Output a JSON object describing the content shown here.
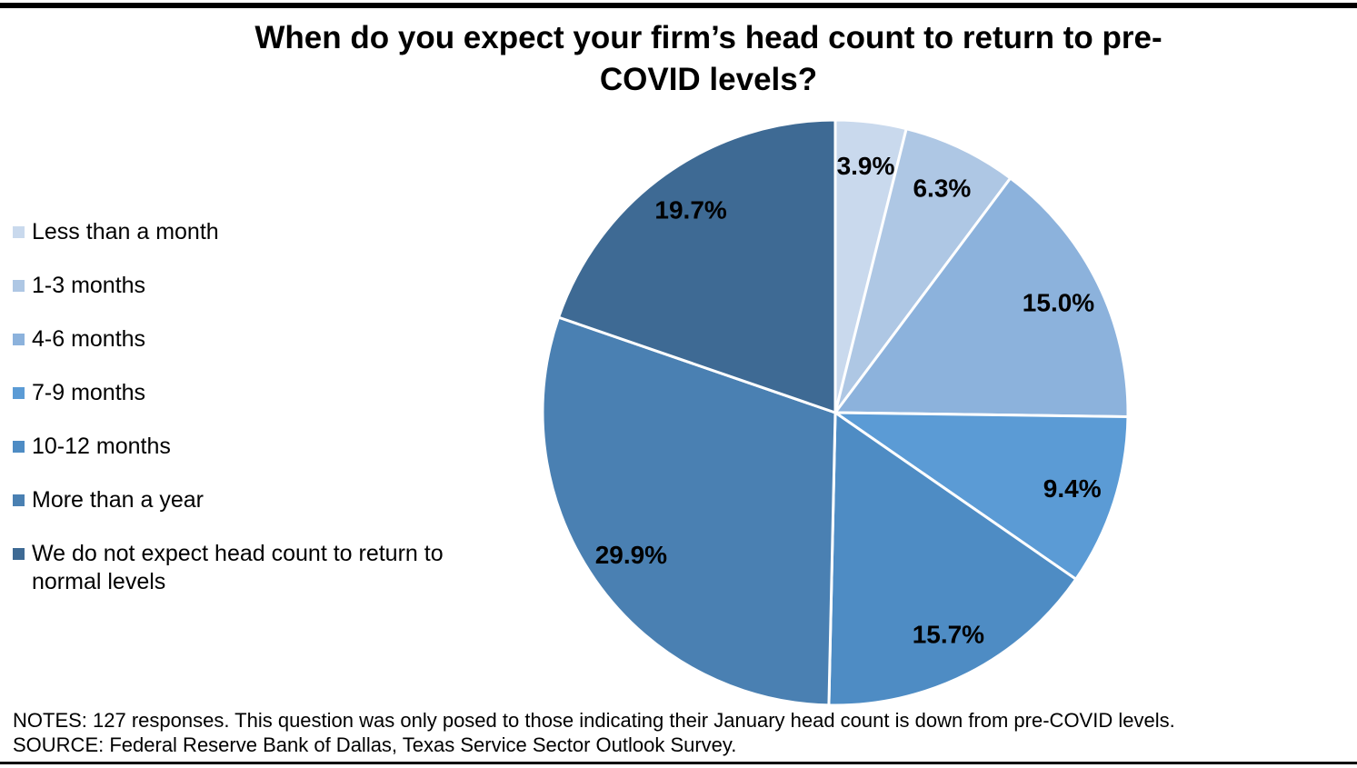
{
  "title": {
    "line1": "When do you expect your firm’s head count to return to pre-",
    "line2": "COVID levels?"
  },
  "notes": {
    "line1": "NOTES: 127 responses. This question was only posed to those indicating their January head count is down from pre-COVID levels.",
    "line2": "SOURCE: Federal Reserve Bank of Dallas, Texas Service Sector Outlook Survey."
  },
  "chart_data": {
    "type": "pie",
    "title": "When do you expect your firm’s head count to return to pre-COVID levels?",
    "start_angle_deg": 0,
    "direction": "clockwise",
    "legend_position": "left",
    "slice_border_color": "#ffffff",
    "slices": [
      {
        "label": "Less than a month",
        "value": 3.9,
        "display": "3.9%",
        "color": "#C9D9ED"
      },
      {
        "label": "1-3 months",
        "value": 6.3,
        "display": "6.3%",
        "color": "#AEC7E4"
      },
      {
        "label": "4-6 months",
        "value": 15.0,
        "display": "15.0%",
        "color": "#8CB2DC"
      },
      {
        "label": "7-9 months",
        "value": 9.4,
        "display": "9.4%",
        "color": "#5B9BD5"
      },
      {
        "label": "10-12 months",
        "value": 15.7,
        "display": "15.7%",
        "color": "#4E8CC4"
      },
      {
        "label": "More than a year",
        "value": 29.9,
        "display": "29.9%",
        "color": "#4A80B2"
      },
      {
        "label": "We do not expect head count to return to normal levels",
        "value": 19.7,
        "display": "19.7%",
        "color": "#3E6A94"
      }
    ]
  }
}
